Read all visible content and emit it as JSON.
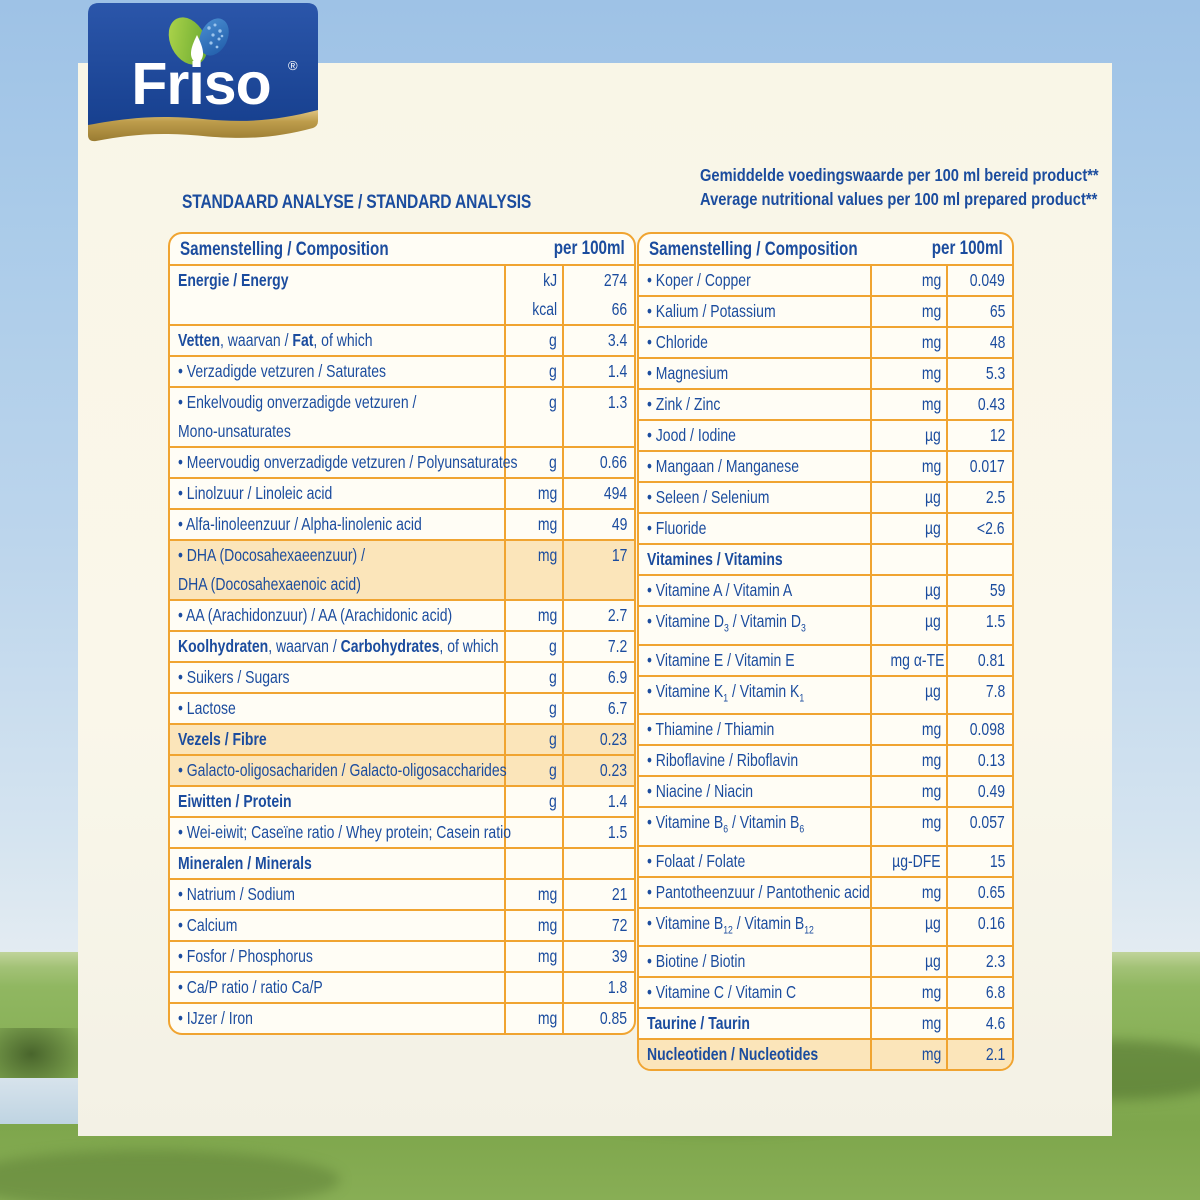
{
  "brand": {
    "logo_text": "Friso",
    "registered_mark": "®"
  },
  "header": {
    "title": "STANDAARD ANALYSE / STANDARD ANALYSIS",
    "note_line1": "Gemiddelde voedingswaarde per 100 ml bereid product**",
    "note_line2": "Average nutritional values per 100 ml prepared product**"
  },
  "colors": {
    "text_blue": "#1b4c9e",
    "table_border_orange": "#f0a431",
    "highlight_row": "#fbe5ba",
    "card_cream": "#faf7ea",
    "logo_panel_blue": "#1f4899",
    "logo_gold": "#b8943f",
    "sky_blue": "#aacbe9",
    "grass_green": "#8cb358"
  },
  "tables": {
    "left": {
      "header": {
        "label": "Samenstelling / Composition",
        "per": "per 100ml"
      },
      "rows": [
        {
          "label": "**Energie / Energy**",
          "unit": "kJ\nkcal",
          "value": "274\n66",
          "highlight": false
        },
        {
          "label": "**Vetten**, waarvan / **Fat**, of which",
          "unit": "g",
          "value": "3.4",
          "highlight": false
        },
        {
          "label": "• Verzadigde vetzuren / Saturates",
          "unit": "g",
          "value": "1.4",
          "highlight": false
        },
        {
          "label": "• Enkelvoudig onverzadigde vetzuren /\nMono-unsaturates",
          "unit": "g",
          "value": "1.3",
          "highlight": false
        },
        {
          "label": "• Meervoudig onverzadigde vetzuren / Polyunsaturates",
          "unit": "g",
          "value": "0.66",
          "highlight": false
        },
        {
          "label": "• Linolzuur / Linoleic acid",
          "unit": "mg",
          "value": "494",
          "highlight": false
        },
        {
          "label": "• Alfa-linoleenzuur / Alpha-linolenic acid",
          "unit": "mg",
          "value": "49",
          "highlight": false
        },
        {
          "label": "• DHA (Docosahexaeenzuur) /\nDHA (Docosahexaenoic acid)",
          "unit": "mg",
          "value": "17",
          "highlight": true
        },
        {
          "label": "• AA (Arachidonzuur) / AA (Arachidonic acid)",
          "unit": "mg",
          "value": "2.7",
          "highlight": false
        },
        {
          "label": "**Koolhydraten**, waarvan / **Carbohydrates**, of which",
          "unit": "g",
          "value": "7.2",
          "highlight": false
        },
        {
          "label": "• Suikers / Sugars",
          "unit": "g",
          "value": "6.9",
          "highlight": false
        },
        {
          "label": "• Lactose",
          "unit": "g",
          "value": "6.7",
          "highlight": false
        },
        {
          "label": "**Vezels / Fibre**",
          "unit": "g",
          "value": "0.23",
          "highlight": true
        },
        {
          "label": "• Galacto-oligosachariden / Galacto-oligosaccharides",
          "unit": "g",
          "value": "0.23",
          "highlight": true
        },
        {
          "label": "**Eiwitten / Protein**",
          "unit": "g",
          "value": "1.4",
          "highlight": false
        },
        {
          "label": "• Wei-eiwit; Caseïne ratio / Whey protein; Casein ratio",
          "unit": "",
          "value": "1.5",
          "highlight": false
        },
        {
          "label": "**Mineralen / Minerals**",
          "unit": "",
          "value": "",
          "highlight": false
        },
        {
          "label": "• Natrium / Sodium",
          "unit": "mg",
          "value": "21",
          "highlight": false
        },
        {
          "label": "• Calcium",
          "unit": "mg",
          "value": "72",
          "highlight": false
        },
        {
          "label": "• Fosfor / Phosphorus",
          "unit": "mg",
          "value": "39",
          "highlight": false
        },
        {
          "label": "• Ca/P ratio / ratio Ca/P",
          "unit": "",
          "value": "1.8",
          "highlight": false
        },
        {
          "label": "• IJzer / Iron",
          "unit": "mg",
          "value": "0.85",
          "highlight": false
        }
      ]
    },
    "right": {
      "header": {
        "label": "Samenstelling / Composition",
        "per": "per 100ml"
      },
      "rows": [
        {
          "label": "• Koper / Copper",
          "unit": "mg",
          "value": "0.049",
          "highlight": false
        },
        {
          "label": "• Kalium / Potassium",
          "unit": "mg",
          "value": "65",
          "highlight": false
        },
        {
          "label": "• Chloride",
          "unit": "mg",
          "value": "48",
          "highlight": false
        },
        {
          "label": "• Magnesium",
          "unit": "mg",
          "value": "5.3",
          "highlight": false
        },
        {
          "label": "• Zink / Zinc",
          "unit": "mg",
          "value": "0.43",
          "highlight": false
        },
        {
          "label": "• Jood / Iodine",
          "unit": "µg",
          "value": "12",
          "highlight": false
        },
        {
          "label": "• Mangaan / Manganese",
          "unit": "mg",
          "value": "0.017",
          "highlight": false
        },
        {
          "label": "• Seleen / Selenium",
          "unit": "µg",
          "value": "2.5",
          "highlight": false
        },
        {
          "label": "• Fluoride",
          "unit": "µg",
          "value": "<2.6",
          "highlight": false
        },
        {
          "label": "**Vitamines / Vitamins**",
          "unit": "",
          "value": "",
          "highlight": false
        },
        {
          "label": "• Vitamine A / Vitamin A",
          "unit": "µg",
          "value": "59",
          "highlight": false
        },
        {
          "label": "• Vitamine D~3~ / Vitamin D~3~",
          "unit": "µg",
          "value": "1.5",
          "highlight": false
        },
        {
          "label": "• Vitamine E / Vitamin E",
          "unit": "mg α-TE",
          "value": "0.81",
          "highlight": false
        },
        {
          "label": "• Vitamine K~1~ / Vitamin K~1~",
          "unit": "µg",
          "value": "7.8",
          "highlight": false
        },
        {
          "label": "• Thiamine / Thiamin",
          "unit": "mg",
          "value": "0.098",
          "highlight": false
        },
        {
          "label": "• Riboflavine / Riboflavin",
          "unit": "mg",
          "value": "0.13",
          "highlight": false
        },
        {
          "label": "• Niacine / Niacin",
          "unit": "mg",
          "value": "0.49",
          "highlight": false
        },
        {
          "label": "• Vitamine B~6~ / Vitamin B~6~",
          "unit": "mg",
          "value": "0.057",
          "highlight": false
        },
        {
          "label": "• Folaat / Folate",
          "unit": "µg-DFE",
          "value": "15",
          "highlight": false
        },
        {
          "label": "• Pantotheenzuur / Pantothenic acid",
          "unit": "mg",
          "value": "0.65",
          "highlight": false
        },
        {
          "label": "• Vitamine B~12~ / Vitamin B~12~",
          "unit": "µg",
          "value": "0.16",
          "highlight": false
        },
        {
          "label": "• Biotine / Biotin",
          "unit": "µg",
          "value": "2.3",
          "highlight": false
        },
        {
          "label": "• Vitamine C / Vitamin C",
          "unit": "mg",
          "value": "6.8",
          "highlight": false
        },
        {
          "label": "**Taurine / Taurin**",
          "unit": "mg",
          "value": "4.6",
          "highlight": false
        },
        {
          "label": "**Nucleotiden / Nucleotides**",
          "unit": "mg",
          "value": "2.1",
          "highlight": true
        }
      ]
    }
  }
}
